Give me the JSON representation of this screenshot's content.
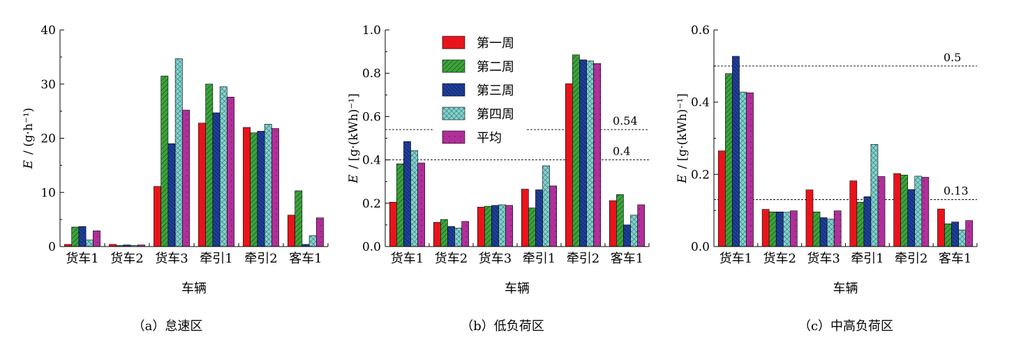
{
  "legend": {
    "entries": [
      "第一周",
      "第二周",
      "第三周",
      "第四周",
      "平均"
    ]
  },
  "series_colors": [
    "#e8141c",
    "#3aa33a",
    "#1f3f9c",
    "#7fd3cf",
    "#b0309a"
  ],
  "chart_data": [
    {
      "type": "bar",
      "caption": "（a）怠速区",
      "categories": [
        "货车1",
        "货车2",
        "货车3",
        "牵引1",
        "牵引2",
        "客车1"
      ],
      "xlabel": "车辆",
      "ylabel_var": "E",
      "ylabel_unit": "/ (g·h⁻¹)",
      "ylim": [
        0,
        40
      ],
      "yticks": [
        0,
        10,
        20,
        30,
        40
      ],
      "ytick_labels": [
        "0",
        "10",
        "20",
        "30",
        "40"
      ],
      "series": [
        {
          "name": "第一周",
          "values": [
            0.4,
            0.4,
            11.1,
            22.8,
            22.0,
            5.8
          ]
        },
        {
          "name": "第二周",
          "values": [
            3.6,
            0.2,
            31.5,
            30.0,
            21.0,
            10.3
          ]
        },
        {
          "name": "第三周",
          "values": [
            3.7,
            0.3,
            19.0,
            24.7,
            21.3,
            0.4
          ]
        },
        {
          "name": "第四周",
          "values": [
            1.2,
            0.2,
            34.7,
            29.5,
            22.6,
            2.0
          ]
        },
        {
          "name": "平均",
          "values": [
            2.9,
            0.3,
            25.2,
            27.6,
            21.8,
            5.3
          ]
        }
      ],
      "ref_lines": []
    },
    {
      "type": "bar",
      "caption": "（b）低负荷区",
      "categories": [
        "货车1",
        "货车2",
        "货车3",
        "牵引1",
        "牵引2",
        "客车1"
      ],
      "xlabel": "车辆",
      "ylabel_var": "E",
      "ylabel_unit": "/ [g·(kWh)⁻¹]",
      "ylim": [
        0,
        1.0
      ],
      "yticks": [
        0,
        0.2,
        0.4,
        0.6,
        0.8,
        1.0
      ],
      "ytick_labels": [
        "0.0",
        "0.2",
        "0.4",
        "0.6",
        "0.8",
        "1.0"
      ],
      "series": [
        {
          "name": "第一周",
          "values": [
            0.205,
            0.112,
            0.182,
            0.265,
            0.752,
            0.212
          ]
        },
        {
          "name": "第二周",
          "values": [
            0.382,
            0.125,
            0.186,
            0.178,
            0.885,
            0.24
          ]
        },
        {
          "name": "第三周",
          "values": [
            0.485,
            0.093,
            0.19,
            0.262,
            0.862,
            0.1
          ]
        },
        {
          "name": "第四周",
          "values": [
            0.443,
            0.085,
            0.193,
            0.373,
            0.857,
            0.145
          ]
        },
        {
          "name": "平均",
          "values": [
            0.386,
            0.116,
            0.19,
            0.28,
            0.845,
            0.193
          ]
        }
      ],
      "ref_lines": [
        {
          "value": 0.54,
          "label": "0.54"
        },
        {
          "value": 0.4,
          "label": "0.4"
        }
      ]
    },
    {
      "type": "bar",
      "caption": "（c）中高负荷区",
      "categories": [
        "货车1",
        "货车2",
        "货车3",
        "牵引1",
        "牵引2",
        "客车1"
      ],
      "xlabel": "车辆",
      "ylabel_var": "E",
      "ylabel_unit": "/ [g·(kWh)⁻¹]",
      "ylim": [
        0,
        0.6
      ],
      "yticks": [
        0,
        0.2,
        0.4,
        0.6
      ],
      "ytick_labels": [
        "0.0",
        "0.2",
        "0.4",
        "0.6"
      ],
      "series": [
        {
          "name": "第一周",
          "values": [
            0.265,
            0.103,
            0.157,
            0.182,
            0.202,
            0.104
          ]
        },
        {
          "name": "第二周",
          "values": [
            0.479,
            0.096,
            0.096,
            0.123,
            0.198,
            0.063
          ]
        },
        {
          "name": "第三周",
          "values": [
            0.527,
            0.096,
            0.08,
            0.138,
            0.158,
            0.068
          ]
        },
        {
          "name": "第四周",
          "values": [
            0.428,
            0.095,
            0.076,
            0.283,
            0.195,
            0.046
          ]
        },
        {
          "name": "平均",
          "values": [
            0.426,
            0.099,
            0.099,
            0.194,
            0.192,
            0.072
          ]
        }
      ],
      "ref_lines": [
        {
          "value": 0.5,
          "label": "0.5"
        },
        {
          "value": 0.13,
          "label": "0.13"
        }
      ]
    }
  ]
}
